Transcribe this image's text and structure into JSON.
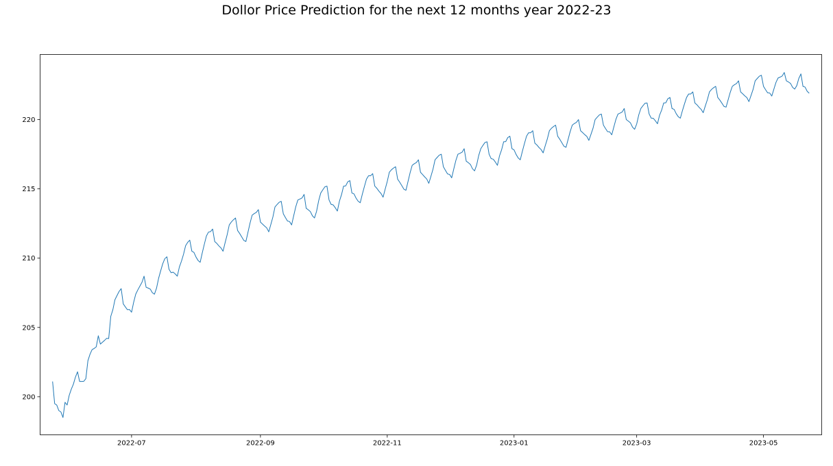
{
  "chart_data": {
    "type": "line",
    "title": "Dollor Price Prediction for the next 12 months year 2022-23",
    "xlabel": "",
    "ylabel": "",
    "x_range": [
      "2022-05-18",
      "2023-05-29"
    ],
    "ylim": [
      197.25,
      224.7
    ],
    "grid": false,
    "x_ticks": [
      "2022-07",
      "2022-09",
      "2022-11",
      "2023-01",
      "2023-03",
      "2023-05"
    ],
    "y_ticks": [
      200,
      205,
      210,
      215,
      220
    ],
    "series": [
      {
        "color": "#1f77b4",
        "x_start": "2022-05-24",
        "x_end": "2023-05-23",
        "frequency": "daily",
        "weekly_pattern": [
          0.35,
          0.3,
          0.55,
          0.95,
          -0.15,
          -0.55,
          -1.0
        ],
        "points": [
          [
            "2022-05-24",
            201.1
          ],
          [
            "2022-05-25",
            199.5
          ],
          [
            "2022-05-26",
            199.4
          ],
          [
            "2022-05-27",
            199.0
          ],
          [
            "2022-05-28",
            198.9
          ],
          [
            "2022-05-29",
            198.5
          ],
          [
            "2022-05-30",
            199.6
          ],
          [
            "2022-05-31",
            199.4
          ],
          [
            "2022-06-01",
            200.1
          ],
          [
            "2022-06-03",
            200.9
          ],
          [
            "2022-06-05",
            201.8
          ],
          [
            "2022-06-06",
            201.1
          ],
          [
            "2022-06-09",
            201.3
          ],
          [
            "2022-06-10",
            202.6
          ],
          [
            "2022-06-12",
            203.4
          ],
          [
            "2022-06-14",
            203.6
          ],
          [
            "2022-06-15",
            204.4
          ],
          [
            "2022-06-16",
            203.8
          ],
          [
            "2022-06-20",
            204.2
          ],
          [
            "2022-06-21",
            205.8
          ],
          [
            "2022-06-23",
            207.0
          ],
          [
            "2022-06-26",
            207.8
          ],
          [
            "2022-06-27",
            206.7
          ],
          [
            "2022-07-01",
            206.1
          ],
          [
            "2022-07-03",
            207.4
          ],
          [
            "2022-07-07",
            208.7
          ],
          [
            "2022-07-08",
            207.9
          ],
          [
            "2022-07-12",
            207.4
          ],
          [
            "2022-07-16",
            209.6
          ],
          [
            "2022-07-18",
            210.1
          ],
          [
            "2022-07-19",
            209.2
          ],
          [
            "2022-07-23",
            208.7
          ],
          [
            "2022-07-27",
            210.9
          ],
          [
            "2022-07-29",
            211.3
          ],
          [
            "2022-07-30",
            210.5
          ],
          [
            "2022-08-03",
            209.7
          ],
          [
            "2022-08-06",
            211.6
          ],
          [
            "2022-08-09",
            212.1
          ],
          [
            "2022-08-10",
            211.2
          ],
          [
            "2022-08-14",
            210.5
          ],
          [
            "2022-08-17",
            212.4
          ],
          [
            "2022-08-20",
            212.9
          ],
          [
            "2022-08-21",
            212.0
          ],
          [
            "2022-08-25",
            211.2
          ],
          [
            "2022-08-28",
            213.1
          ],
          [
            "2022-08-31",
            213.5
          ],
          [
            "2022-09-01",
            212.6
          ],
          [
            "2022-09-05",
            211.9
          ],
          [
            "2022-09-08",
            213.7
          ],
          [
            "2022-09-11",
            214.1
          ],
          [
            "2022-09-12",
            213.2
          ],
          [
            "2022-09-16",
            212.4
          ],
          [
            "2022-09-19",
            214.2
          ],
          [
            "2022-09-22",
            214.6
          ],
          [
            "2022-09-23",
            213.6
          ],
          [
            "2022-09-27",
            212.9
          ],
          [
            "2022-09-30",
            214.7
          ],
          [
            "2022-10-03",
            215.2
          ],
          [
            "2022-10-04",
            214.2
          ],
          [
            "2022-10-08",
            213.4
          ],
          [
            "2022-10-11",
            215.2
          ],
          [
            "2022-10-14",
            215.6
          ],
          [
            "2022-10-15",
            214.7
          ],
          [
            "2022-10-19",
            214.0
          ],
          [
            "2022-10-22",
            215.7
          ],
          [
            "2022-10-25",
            216.1
          ],
          [
            "2022-10-26",
            215.2
          ],
          [
            "2022-10-30",
            214.4
          ],
          [
            "2022-11-02",
            216.2
          ],
          [
            "2022-11-05",
            216.6
          ],
          [
            "2022-11-06",
            215.7
          ],
          [
            "2022-11-10",
            214.9
          ],
          [
            "2022-11-13",
            216.7
          ],
          [
            "2022-11-16",
            217.1
          ],
          [
            "2022-11-17",
            216.2
          ],
          [
            "2022-11-21",
            215.4
          ],
          [
            "2022-11-24",
            217.1
          ],
          [
            "2022-11-27",
            217.5
          ],
          [
            "2022-11-28",
            216.6
          ],
          [
            "2022-12-02",
            215.8
          ],
          [
            "2022-12-05",
            217.5
          ],
          [
            "2022-12-08",
            217.9
          ],
          [
            "2022-12-09",
            217.0
          ],
          [
            "2022-12-13",
            216.3
          ],
          [
            "2022-12-16",
            217.9
          ],
          [
            "2022-12-19",
            218.4
          ],
          [
            "2022-12-20",
            217.5
          ],
          [
            "2022-12-24",
            216.7
          ],
          [
            "2022-12-27",
            218.4
          ],
          [
            "2022-12-30",
            218.8
          ],
          [
            "2022-12-31",
            217.9
          ],
          [
            "2023-01-04",
            217.1
          ],
          [
            "2023-01-07",
            218.8
          ],
          [
            "2023-01-10",
            219.2
          ],
          [
            "2023-01-11",
            218.3
          ],
          [
            "2023-01-15",
            217.6
          ],
          [
            "2023-01-18",
            219.2
          ],
          [
            "2023-01-21",
            219.6
          ],
          [
            "2023-01-22",
            218.8
          ],
          [
            "2023-01-26",
            218.0
          ],
          [
            "2023-01-29",
            219.6
          ],
          [
            "2023-02-01",
            220.0
          ],
          [
            "2023-02-02",
            219.2
          ],
          [
            "2023-02-06",
            218.5
          ],
          [
            "2023-02-09",
            220.0
          ],
          [
            "2023-02-12",
            220.4
          ],
          [
            "2023-02-13",
            219.6
          ],
          [
            "2023-02-17",
            218.9
          ],
          [
            "2023-02-20",
            220.4
          ],
          [
            "2023-02-23",
            220.8
          ],
          [
            "2023-02-24",
            220.0
          ],
          [
            "2023-02-28",
            219.3
          ],
          [
            "2023-03-03",
            220.8
          ],
          [
            "2023-03-06",
            221.2
          ],
          [
            "2023-03-07",
            220.4
          ],
          [
            "2023-03-11",
            219.7
          ],
          [
            "2023-03-14",
            221.2
          ],
          [
            "2023-03-17",
            221.6
          ],
          [
            "2023-03-18",
            220.8
          ],
          [
            "2023-03-22",
            220.1
          ],
          [
            "2023-03-25",
            221.6
          ],
          [
            "2023-03-28",
            222.0
          ],
          [
            "2023-03-29",
            221.2
          ],
          [
            "2023-04-02",
            220.5
          ],
          [
            "2023-04-05",
            222.0
          ],
          [
            "2023-04-08",
            222.4
          ],
          [
            "2023-04-09",
            221.6
          ],
          [
            "2023-04-13",
            220.9
          ],
          [
            "2023-04-16",
            222.4
          ],
          [
            "2023-04-19",
            222.8
          ],
          [
            "2023-04-20",
            222.0
          ],
          [
            "2023-04-24",
            221.3
          ],
          [
            "2023-04-27",
            222.8
          ],
          [
            "2023-04-30",
            223.2
          ],
          [
            "2023-05-01",
            222.4
          ],
          [
            "2023-05-05",
            221.7
          ],
          [
            "2023-05-08",
            223.0
          ],
          [
            "2023-05-11",
            223.4
          ],
          [
            "2023-05-12",
            222.8
          ],
          [
            "2023-05-16",
            222.2
          ],
          [
            "2023-05-19",
            223.3
          ],
          [
            "2023-05-20",
            222.4
          ],
          [
            "2023-05-23",
            221.9
          ]
        ]
      }
    ]
  }
}
